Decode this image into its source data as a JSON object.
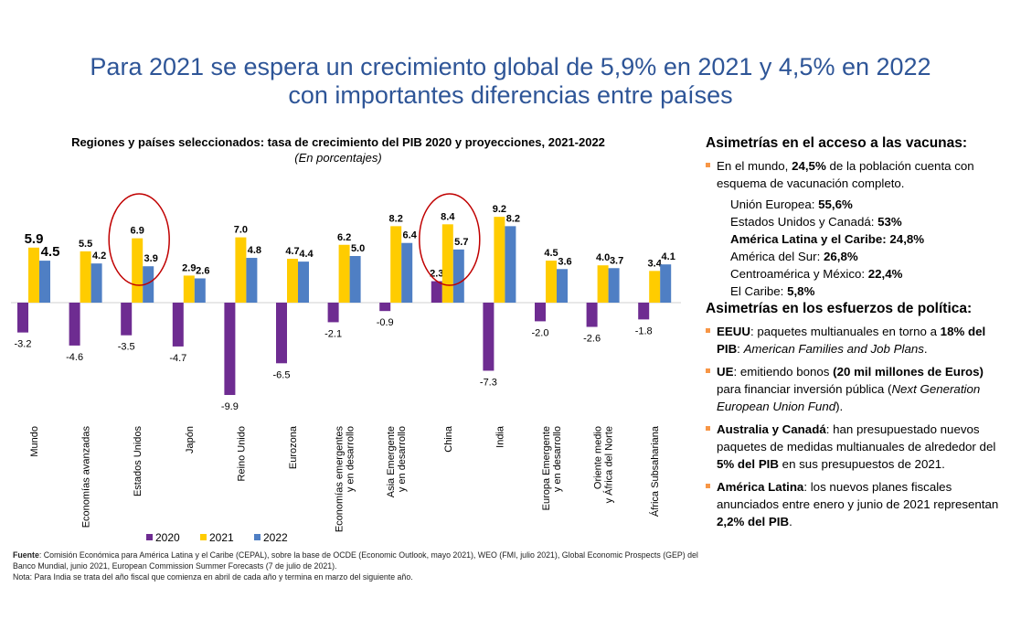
{
  "title": {
    "line1": "Para 2021 se espera un  crecimiento global de 5,9% en 2021 y 4,5% en 2022",
    "line2": "con importantes diferencias entre países"
  },
  "colors": {
    "title": "#2E5597",
    "s2020": "#6E2C91",
    "s2021": "#FFCC00",
    "s2022": "#4F7FC4",
    "bullet": "#F79646",
    "circle": "#C00000"
  },
  "chart_data": {
    "type": "bar",
    "title": "Regiones y países seleccionados: tasa de crecimiento del PIB 2020 y proyecciones, 2021-2022",
    "subtitle": "(En porcentajes)",
    "categories": [
      "Mundo",
      "Economías avanzadas",
      "Estados Unidos",
      "Japón",
      "Reino Unido",
      "Eurozona",
      "Economías emergentes y en desarrollo",
      "Asia Emergente y en desarrollo",
      "China",
      "India",
      "Europa Emergente y en desarrollo",
      "Oriente medio y África del Norte",
      "África Subsahariana"
    ],
    "category_lines": [
      [
        "Mundo"
      ],
      [
        "Economías avanzadas"
      ],
      [
        "Estados Unidos"
      ],
      [
        "Japón"
      ],
      [
        "Reino Unido"
      ],
      [
        "Eurozona"
      ],
      [
        "Economías emergentes",
        "y en desarrollo"
      ],
      [
        "Asia Emergente",
        "y en desarrollo"
      ],
      [
        "China"
      ],
      [
        "India"
      ],
      [
        "Europa Emergente",
        "y en desarrollo"
      ],
      [
        "Oriente medio",
        "y África del Norte"
      ],
      [
        "África Subsahariana"
      ]
    ],
    "series": [
      {
        "name": "2020",
        "values": [
          -3.2,
          -4.6,
          -3.5,
          -4.7,
          -9.9,
          -6.5,
          -2.1,
          -0.9,
          2.3,
          -7.3,
          -2.0,
          -2.6,
          -1.8
        ]
      },
      {
        "name": "2021",
        "values": [
          5.9,
          5.5,
          6.9,
          2.9,
          7.0,
          4.7,
          6.2,
          8.2,
          8.4,
          9.2,
          4.5,
          4.0,
          3.4
        ]
      },
      {
        "name": "2022",
        "values": [
          4.5,
          4.2,
          3.9,
          2.6,
          4.8,
          4.4,
          5.0,
          6.4,
          5.7,
          8.2,
          3.6,
          3.7,
          4.1
        ]
      }
    ],
    "labels": [
      [
        "-3.2",
        "5.9",
        "4.5"
      ],
      [
        "-4.6",
        "5.5",
        "4.2"
      ],
      [
        "-3.5",
        "6.9",
        "3.9"
      ],
      [
        "-4.7",
        "2.9",
        "2.6"
      ],
      [
        "-9.9",
        "7.0",
        "4.8"
      ],
      [
        "-6.5",
        "4.7",
        "4.4"
      ],
      [
        "-2.1",
        "6.2",
        "5.0"
      ],
      [
        "-0.9",
        "8.2",
        "6.4"
      ],
      [
        "2.3",
        "8.4",
        "5.7"
      ],
      [
        "-7.3",
        "9.2",
        "8.2"
      ],
      [
        "-2.0",
        "4.5",
        "3.6"
      ],
      [
        "-2.6",
        "4.0",
        "3.7"
      ],
      [
        "-1.8",
        "3.4",
        "4.1"
      ]
    ],
    "highlighted": [
      "Estados Unidos",
      "China"
    ],
    "ylim": [
      -10,
      9.5
    ],
    "legend": [
      "2020",
      "2021",
      "2022"
    ]
  },
  "sidebar": {
    "vac_heading": "Asimetrías en el acceso a las vacunas:",
    "vac_intro_a": "En el mundo, ",
    "vac_intro_b": "24,5%",
    "vac_intro_c": " de la población cuenta con esquema de vacunación completo.",
    "vac_list": [
      {
        "label": "Unión Europea: ",
        "value": "55,6%"
      },
      {
        "label": "Estados Unidos y Canadá: ",
        "value": "53%"
      },
      {
        "label": "América Latina y el Caribe: ",
        "value": "24,8%"
      },
      {
        "label": "América del Sur: ",
        "value": "26,8%"
      },
      {
        "label": "Centroamérica y México: ",
        "value": "22,4%"
      },
      {
        "label": "El Caribe: ",
        "value": "5,8%"
      }
    ],
    "pol_heading": "Asimetrías en los esfuerzos de política:",
    "pol1": {
      "a": "EEUU",
      "b": ": paquetes multianuales en torno a ",
      "c": "18% del PIB",
      "d": ": ",
      "e": "American Families and Job Plans",
      "f": "."
    },
    "pol2": {
      "a": "UE",
      "b": ": emitiendo bonos ",
      "c": "(20 mil millones de Euros)",
      "d": " para financiar inversión pública  (",
      "e": "Next Generation European Union Fund",
      "f": ")."
    },
    "pol3": {
      "a": "Australia y Canadá",
      "b": ": han presupuestado nuevos paquetes de medidas multianuales de alrededor del ",
      "c": "5% del PIB",
      "d": " en sus presupuestos de 2021."
    },
    "pol4": {
      "a": "América Latina",
      "b": ": los nuevos planes fiscales anunciados entre enero y junio de 2021 representan ",
      "c": "2,2% del PIB",
      "d": "."
    }
  },
  "source": {
    "label": "Fuente",
    "text": ": Comisión Económica para América Latina y el Caribe (CEPAL), sobre la base de OCDE (Economic Outlook, mayo 2021), WEO (FMI, julio 2021), Global Economic Prospects (GEP) del Banco Mundial, junio 2021, European Commission Summer Forecasts (7 de julio de 2021).",
    "note": "Nota: Para India se trata del año fiscal que comienza en abril de cada año y termina en marzo del siguiente año."
  }
}
